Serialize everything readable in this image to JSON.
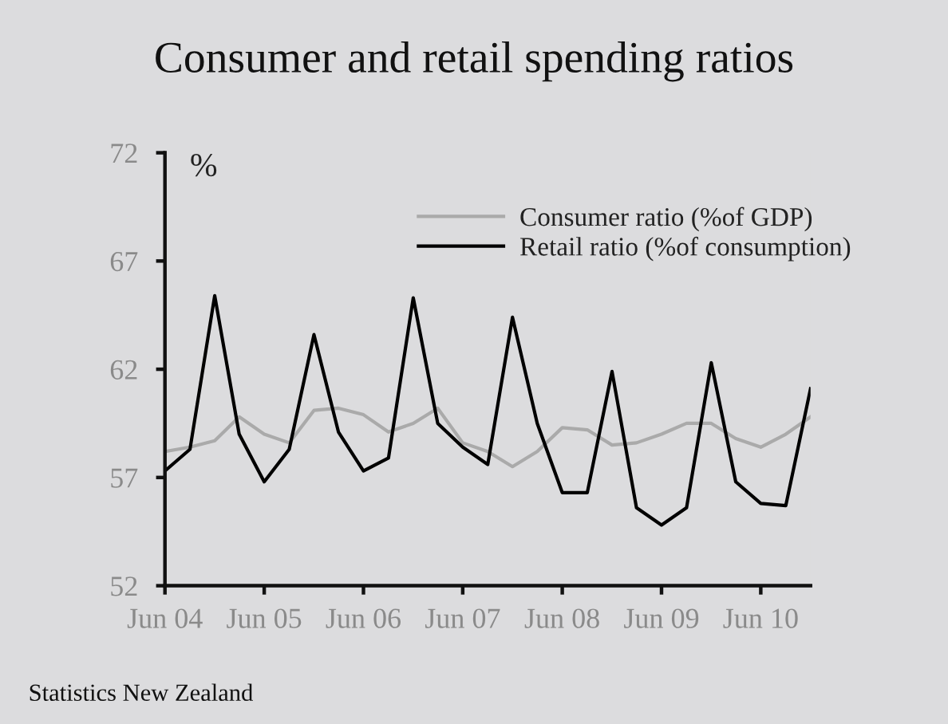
{
  "chart_data": {
    "type": "line",
    "title": "Consumer and retail spending ratios",
    "ylabel": "%",
    "x": [
      "2004-06",
      "2004-09",
      "2004-12",
      "2005-03",
      "2005-06",
      "2005-09",
      "2005-12",
      "2006-03",
      "2006-06",
      "2006-09",
      "2006-12",
      "2007-03",
      "2007-06",
      "2007-09",
      "2007-12",
      "2008-03",
      "2008-06",
      "2008-09",
      "2008-12",
      "2009-03",
      "2009-06",
      "2009-09",
      "2009-12",
      "2010-03",
      "2010-06",
      "2010-09",
      "2010-12"
    ],
    "series": [
      {
        "name": "Consumer ratio (%of GDP)",
        "color": "#aaaaaa",
        "values": [
          58.2,
          58.4,
          58.7,
          59.8,
          59.0,
          58.6,
          60.1,
          60.2,
          59.9,
          59.1,
          59.5,
          60.2,
          58.6,
          58.2,
          57.5,
          58.2,
          59.3,
          59.2,
          58.5,
          58.6,
          59.0,
          59.5,
          59.5,
          58.8,
          58.4,
          59.0,
          59.8
        ]
      },
      {
        "name": "Retail ratio (%of consumption)",
        "color": "#000000",
        "values": [
          57.3,
          58.3,
          65.4,
          59.0,
          56.8,
          58.3,
          63.6,
          59.1,
          57.3,
          57.9,
          65.3,
          59.5,
          58.4,
          57.6,
          64.4,
          59.5,
          56.3,
          56.3,
          61.9,
          55.6,
          54.8,
          55.6,
          62.3,
          56.8,
          55.8,
          55.7,
          61.1
        ]
      }
    ],
    "xlim": [
      "2004-06",
      "2010-12"
    ],
    "xticks": [
      {
        "value": "2004-06",
        "label": "Jun 04"
      },
      {
        "value": "2005-06",
        "label": "Jun 05"
      },
      {
        "value": "2006-06",
        "label": "Jun 06"
      },
      {
        "value": "2007-06",
        "label": "Jun 07"
      },
      {
        "value": "2008-06",
        "label": "Jun 08"
      },
      {
        "value": "2009-06",
        "label": "Jun 09"
      },
      {
        "value": "2010-06",
        "label": "Jun 10"
      }
    ],
    "ylim": [
      52,
      72
    ],
    "yticks": [
      52,
      57,
      62,
      67,
      72
    ],
    "legend": "top right",
    "annotations": [
      "Statistics New Zealand"
    ]
  }
}
